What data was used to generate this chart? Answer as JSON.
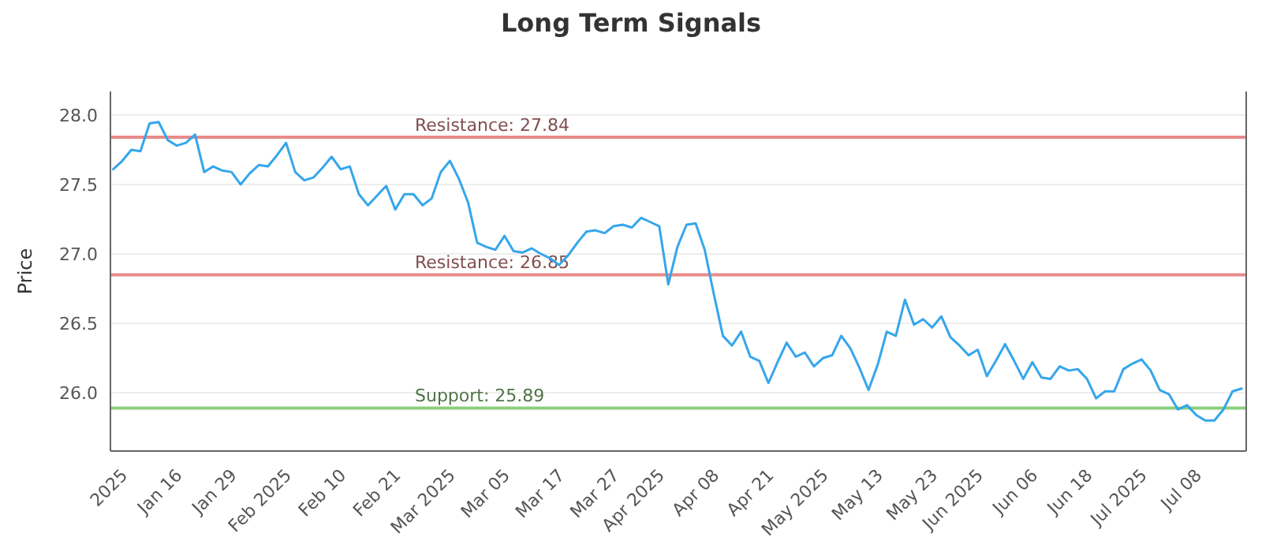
{
  "chart_data": {
    "type": "line",
    "title": "Long Term Signals",
    "ylabel": "Price",
    "categories": [
      null,
      "2025",
      null,
      null,
      null,
      null,
      null,
      "Jan 16",
      null,
      null,
      null,
      null,
      null,
      "Jan 29",
      null,
      null,
      null,
      null,
      null,
      "Feb 2025",
      null,
      null,
      null,
      null,
      null,
      "Feb 10",
      null,
      null,
      null,
      null,
      null,
      "Feb 21",
      null,
      null,
      null,
      null,
      null,
      "Mar 2025",
      null,
      null,
      null,
      null,
      null,
      "Mar 05",
      null,
      null,
      null,
      null,
      null,
      "Mar 17",
      null,
      null,
      null,
      null,
      null,
      "Mar 27",
      null,
      null,
      null,
      null,
      "Apr 2025",
      null,
      null,
      null,
      null,
      null,
      "Apr 08",
      null,
      null,
      null,
      null,
      null,
      "Apr 21",
      null,
      null,
      null,
      null,
      null,
      "May 2025",
      null,
      null,
      null,
      null,
      null,
      "May 13",
      null,
      null,
      null,
      null,
      null,
      "May 23",
      null,
      null,
      null,
      null,
      "Jun 2025",
      null,
      null,
      null,
      null,
      null,
      "Jun 06",
      null,
      null,
      null,
      null,
      null,
      "Jun 18",
      null,
      null,
      null,
      null,
      null,
      "Jul 2025",
      null,
      null,
      null,
      null,
      null,
      "Jul 08",
      null,
      null,
      null,
      null,
      null
    ],
    "series": [
      {
        "color": "#35a6ec",
        "values": [
          27.61,
          27.67,
          27.75,
          27.74,
          27.94,
          27.95,
          27.82,
          27.78,
          27.8,
          27.86,
          27.59,
          27.63,
          27.6,
          27.59,
          27.5,
          27.58,
          27.64,
          27.63,
          27.71,
          27.8,
          27.59,
          27.53,
          27.55,
          27.62,
          27.7,
          27.61,
          27.63,
          27.43,
          27.35,
          27.42,
          27.49,
          27.32,
          27.43,
          27.43,
          27.35,
          27.4,
          27.59,
          27.67,
          27.54,
          27.37,
          27.08,
          27.05,
          27.03,
          27.13,
          27.02,
          27.01,
          27.04,
          27.0,
          26.97,
          26.92,
          26.99,
          27.08,
          27.16,
          27.17,
          27.15,
          27.2,
          27.21,
          27.19,
          27.26,
          27.23,
          27.2,
          26.78,
          27.05,
          27.21,
          27.22,
          27.03,
          26.71,
          26.41,
          26.34,
          26.44,
          26.26,
          26.23,
          26.07,
          26.22,
          26.36,
          26.26,
          26.29,
          26.19,
          26.25,
          26.27,
          26.41,
          26.32,
          26.18,
          26.02,
          26.2,
          26.44,
          26.41,
          26.67,
          26.49,
          26.53,
          26.47,
          26.55,
          26.4,
          26.34,
          26.27,
          26.31,
          26.12,
          26.23,
          26.35,
          26.23,
          26.1,
          26.22,
          26.11,
          26.1,
          26.19,
          26.16,
          26.17,
          26.1,
          25.96,
          26.01,
          26.01,
          26.17,
          26.21,
          26.24,
          26.16,
          26.02,
          25.99,
          25.88,
          25.91,
          25.84,
          25.8,
          25.8,
          25.88,
          26.01,
          26.03
        ]
      }
    ],
    "ylim": [
      25.58,
      28.17
    ],
    "yticks": [
      {
        "value": 26,
        "label": "26.0"
      },
      {
        "value": 26.5,
        "label": "26.5"
      },
      {
        "value": 27,
        "label": "27.0"
      },
      {
        "value": 27.5,
        "label": "27.5"
      },
      {
        "value": 28,
        "label": "28.0"
      }
    ],
    "grid": "y",
    "marker": "none",
    "line_style": "solid",
    "ref_lines": [
      {
        "axis": "y",
        "value": 27.84,
        "label": "Resistance: 27.84",
        "color": "#e88a8a"
      },
      {
        "axis": "y",
        "value": 26.85,
        "label": "Resistance: 26.85",
        "color": "#e88a8a"
      },
      {
        "axis": "y",
        "value": 25.89,
        "label": "Support: 25.89",
        "color": "#8ccf7e"
      }
    ]
  }
}
